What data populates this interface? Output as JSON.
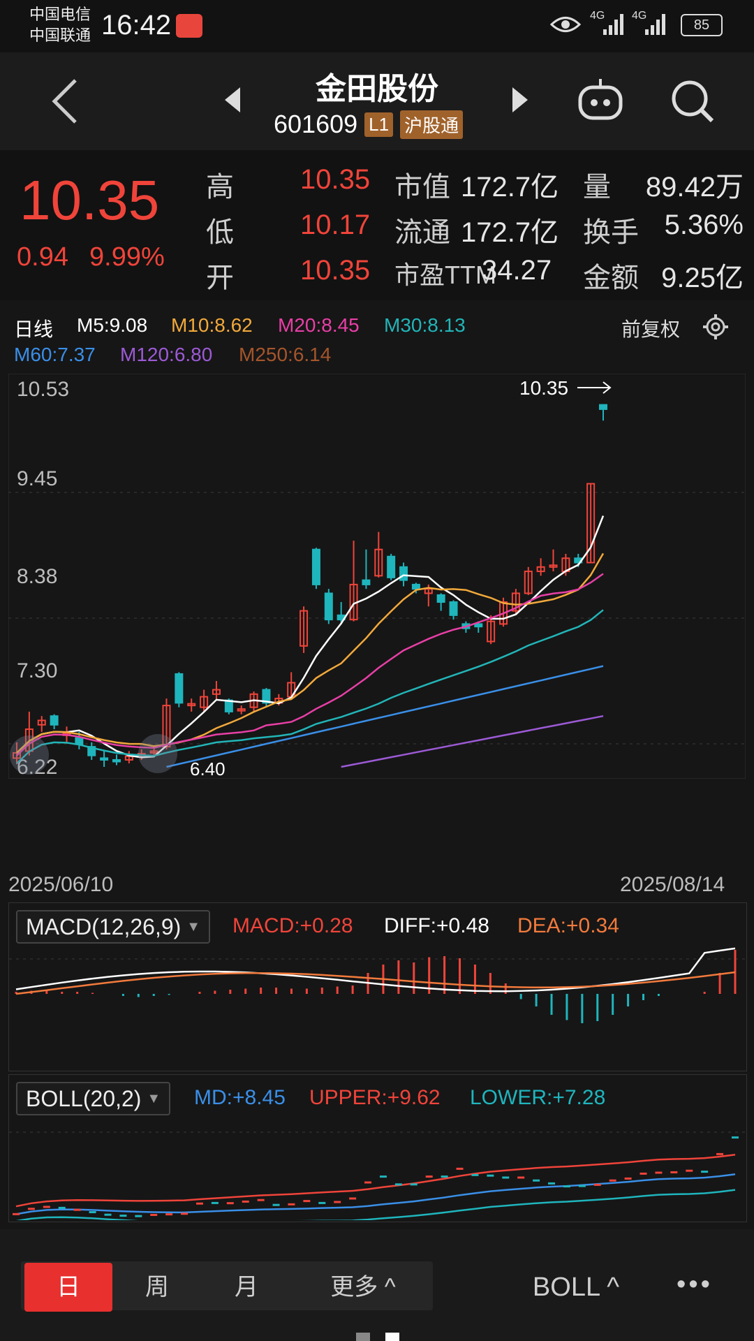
{
  "status": {
    "carrier1": "中国电信",
    "carrier2": "中国联通",
    "time": "16:42",
    "network1": "4G",
    "network2": "4G",
    "battery": "85"
  },
  "header": {
    "title": "金田股份",
    "code": "601609",
    "tag_l1": "L1",
    "tag_hgt": "沪股通"
  },
  "quote": {
    "price": "10.35",
    "change": "0.94",
    "change_pct": "9.99%",
    "rows": [
      {
        "l1": "高",
        "v1": "10.35",
        "l2": "市值",
        "v2": "172.7亿",
        "l3": "量",
        "v3": "89.42万"
      },
      {
        "l1": "低",
        "v1": "10.17",
        "l2": "流通",
        "v2": "172.7亿",
        "l3": "换手",
        "v3": "5.36%"
      },
      {
        "l1": "开",
        "v1": "10.35",
        "l2": "市盈TTM",
        "v2": "34.27",
        "l3": "金额",
        "v3": "9.25亿"
      }
    ]
  },
  "kline": {
    "period": "日线",
    "mas": [
      "M5:9.08",
      "M10:8.62",
      "M20:8.45",
      "M30:8.13",
      "M60:7.37",
      "M120:6.80",
      "M250:6.14"
    ],
    "fuquan": "前复权",
    "y_ticks": [
      "10.53",
      "9.45",
      "8.38",
      "7.30",
      "6.22"
    ],
    "high_marker": "10.35",
    "low_marker": "6.40",
    "date_start": "2025/06/10",
    "date_end": "2025/08/14"
  },
  "macd": {
    "selector": "MACD(12,26,9)",
    "macd": "MACD:+0.28",
    "diff": "DIFF:+0.48",
    "dea": "DEA:+0.34"
  },
  "boll": {
    "selector": "BOLL(20,2)",
    "md": "MD:+8.45",
    "upper": "UPPER:+9.62",
    "lower": "LOWER:+7.28"
  },
  "bottom": {
    "tabs": [
      "日",
      "周",
      "月",
      "更多 ^"
    ],
    "indicator": "BOLL ^",
    "more": "•••"
  },
  "colors": {
    "up": "#f0443a",
    "down": "#1fb5bd",
    "m5": "#ffffff",
    "m10": "#f2a93b",
    "m20": "#e83fa6",
    "m30": "#22b5b8",
    "m60": "#3a8fe8",
    "m120": "#9c5ad6",
    "m250": "#a5552b"
  }
}
